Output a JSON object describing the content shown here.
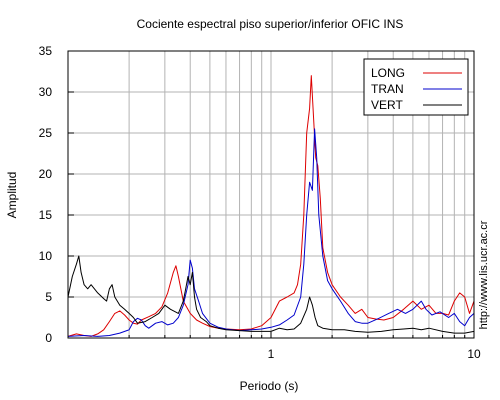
{
  "chart_data": {
    "type": "line",
    "title": "Cociente espectral piso superior/inferior  OFIC INS",
    "xlabel": "Periodo (s)",
    "ylabel": "Amplitud",
    "x_scale": "log",
    "xlim": [
      0.1,
      10
    ],
    "ylim": [
      0,
      35
    ],
    "x_tick_labels": [
      "1",
      "10"
    ],
    "y_ticks": [
      0,
      5,
      10,
      15,
      20,
      25,
      30,
      35
    ],
    "grid": true,
    "legend_position": "top-right",
    "credit": "http://www.lis.ucr.ac.cr",
    "series": [
      {
        "name": "LONG",
        "color": "#dd0000",
        "points": [
          [
            0.1,
            0.2
          ],
          [
            0.11,
            0.5
          ],
          [
            0.12,
            0.3
          ],
          [
            0.13,
            0.2
          ],
          [
            0.14,
            0.5
          ],
          [
            0.15,
            1.0
          ],
          [
            0.16,
            2.0
          ],
          [
            0.17,
            3.0
          ],
          [
            0.18,
            3.3
          ],
          [
            0.19,
            2.8
          ],
          [
            0.2,
            2.2
          ],
          [
            0.21,
            1.8
          ],
          [
            0.22,
            1.7
          ],
          [
            0.23,
            2.2
          ],
          [
            0.25,
            2.6
          ],
          [
            0.27,
            3.0
          ],
          [
            0.29,
            3.8
          ],
          [
            0.31,
            5.5
          ],
          [
            0.33,
            8.0
          ],
          [
            0.34,
            8.8
          ],
          [
            0.35,
            7.5
          ],
          [
            0.37,
            4.5
          ],
          [
            0.4,
            3.0
          ],
          [
            0.43,
            2.2
          ],
          [
            0.46,
            1.8
          ],
          [
            0.5,
            1.4
          ],
          [
            0.55,
            1.2
          ],
          [
            0.6,
            1.1
          ],
          [
            0.7,
            1.0
          ],
          [
            0.8,
            1.1
          ],
          [
            0.9,
            1.5
          ],
          [
            1.0,
            2.5
          ],
          [
            1.1,
            4.5
          ],
          [
            1.2,
            5.0
          ],
          [
            1.3,
            5.5
          ],
          [
            1.35,
            6.5
          ],
          [
            1.4,
            9.0
          ],
          [
            1.45,
            15.0
          ],
          [
            1.5,
            25.0
          ],
          [
            1.55,
            28.0
          ],
          [
            1.58,
            32.0
          ],
          [
            1.62,
            27.0
          ],
          [
            1.66,
            22.0
          ],
          [
            1.7,
            21.0
          ],
          [
            1.75,
            17.0
          ],
          [
            1.8,
            11.0
          ],
          [
            1.9,
            8.0
          ],
          [
            2.0,
            6.5
          ],
          [
            2.2,
            5.0
          ],
          [
            2.4,
            4.0
          ],
          [
            2.6,
            3.0
          ],
          [
            2.8,
            3.5
          ],
          [
            3.0,
            2.5
          ],
          [
            3.3,
            2.3
          ],
          [
            3.6,
            2.2
          ],
          [
            4.0,
            2.5
          ],
          [
            4.5,
            3.5
          ],
          [
            5.0,
            4.5
          ],
          [
            5.5,
            3.5
          ],
          [
            6.0,
            4.0
          ],
          [
            6.5,
            3.0
          ],
          [
            7.0,
            3.0
          ],
          [
            7.5,
            2.8
          ],
          [
            8.0,
            4.5
          ],
          [
            8.5,
            5.5
          ],
          [
            9.0,
            5.0
          ],
          [
            9.5,
            3.0
          ],
          [
            10.0,
            4.5
          ]
        ]
      },
      {
        "name": "TRAN",
        "color": "#0000cc",
        "points": [
          [
            0.1,
            0.2
          ],
          [
            0.12,
            0.3
          ],
          [
            0.14,
            0.2
          ],
          [
            0.16,
            0.3
          ],
          [
            0.18,
            0.6
          ],
          [
            0.2,
            1.0
          ],
          [
            0.21,
            2.0
          ],
          [
            0.22,
            2.4
          ],
          [
            0.23,
            2.2
          ],
          [
            0.24,
            1.5
          ],
          [
            0.25,
            1.2
          ],
          [
            0.27,
            1.8
          ],
          [
            0.29,
            2.0
          ],
          [
            0.31,
            1.6
          ],
          [
            0.33,
            1.8
          ],
          [
            0.35,
            2.5
          ],
          [
            0.37,
            4.0
          ],
          [
            0.39,
            6.5
          ],
          [
            0.4,
            9.5
          ],
          [
            0.41,
            8.5
          ],
          [
            0.42,
            6.0
          ],
          [
            0.44,
            4.5
          ],
          [
            0.46,
            3.0
          ],
          [
            0.5,
            1.8
          ],
          [
            0.55,
            1.3
          ],
          [
            0.6,
            1.1
          ],
          [
            0.7,
            0.9
          ],
          [
            0.8,
            1.0
          ],
          [
            0.9,
            1.1
          ],
          [
            1.0,
            1.3
          ],
          [
            1.1,
            1.6
          ],
          [
            1.2,
            2.2
          ],
          [
            1.3,
            2.8
          ],
          [
            1.4,
            5.0
          ],
          [
            1.45,
            9.0
          ],
          [
            1.5,
            15.0
          ],
          [
            1.55,
            19.0
          ],
          [
            1.6,
            18.0
          ],
          [
            1.64,
            25.5
          ],
          [
            1.68,
            22.0
          ],
          [
            1.72,
            15.0
          ],
          [
            1.8,
            10.0
          ],
          [
            1.9,
            7.0
          ],
          [
            2.0,
            6.0
          ],
          [
            2.2,
            4.5
          ],
          [
            2.4,
            3.0
          ],
          [
            2.6,
            2.0
          ],
          [
            2.8,
            1.8
          ],
          [
            3.0,
            1.8
          ],
          [
            3.4,
            2.4
          ],
          [
            3.8,
            3.0
          ],
          [
            4.2,
            3.5
          ],
          [
            4.6,
            3.0
          ],
          [
            5.0,
            3.5
          ],
          [
            5.5,
            4.5
          ],
          [
            5.8,
            3.5
          ],
          [
            6.2,
            2.8
          ],
          [
            6.8,
            3.2
          ],
          [
            7.5,
            2.5
          ],
          [
            8.0,
            3.0
          ],
          [
            8.5,
            2.0
          ],
          [
            9.0,
            1.5
          ],
          [
            9.5,
            2.5
          ],
          [
            10.0,
            3.0
          ]
        ]
      },
      {
        "name": "VERT",
        "color": "#000000",
        "points": [
          [
            0.1,
            5.0
          ],
          [
            0.105,
            7.5
          ],
          [
            0.11,
            9.0
          ],
          [
            0.113,
            10.0
          ],
          [
            0.116,
            8.0
          ],
          [
            0.12,
            6.5
          ],
          [
            0.125,
            6.0
          ],
          [
            0.13,
            6.5
          ],
          [
            0.14,
            5.5
          ],
          [
            0.15,
            4.8
          ],
          [
            0.155,
            4.5
          ],
          [
            0.16,
            6.0
          ],
          [
            0.165,
            6.5
          ],
          [
            0.17,
            5.0
          ],
          [
            0.18,
            4.0
          ],
          [
            0.19,
            3.5
          ],
          [
            0.2,
            3.0
          ],
          [
            0.21,
            2.5
          ],
          [
            0.22,
            1.8
          ],
          [
            0.24,
            2.0
          ],
          [
            0.26,
            2.5
          ],
          [
            0.28,
            3.0
          ],
          [
            0.3,
            4.0
          ],
          [
            0.32,
            3.5
          ],
          [
            0.35,
            3.0
          ],
          [
            0.37,
            4.5
          ],
          [
            0.38,
            6.0
          ],
          [
            0.39,
            7.5
          ],
          [
            0.4,
            6.5
          ],
          [
            0.41,
            8.0
          ],
          [
            0.42,
            5.0
          ],
          [
            0.43,
            3.5
          ],
          [
            0.45,
            2.5
          ],
          [
            0.48,
            2.0
          ],
          [
            0.5,
            1.5
          ],
          [
            0.55,
            1.2
          ],
          [
            0.6,
            1.0
          ],
          [
            0.7,
            0.9
          ],
          [
            0.8,
            0.8
          ],
          [
            0.9,
            0.8
          ],
          [
            1.0,
            0.8
          ],
          [
            1.1,
            1.2
          ],
          [
            1.2,
            1.0
          ],
          [
            1.3,
            1.1
          ],
          [
            1.4,
            1.8
          ],
          [
            1.5,
            3.5
          ],
          [
            1.55,
            5.0
          ],
          [
            1.6,
            4.0
          ],
          [
            1.65,
            2.5
          ],
          [
            1.7,
            1.5
          ],
          [
            1.8,
            1.2
          ],
          [
            2.0,
            1.0
          ],
          [
            2.3,
            1.0
          ],
          [
            2.6,
            0.8
          ],
          [
            3.0,
            0.7
          ],
          [
            3.5,
            0.8
          ],
          [
            4.0,
            1.0
          ],
          [
            4.5,
            1.1
          ],
          [
            5.0,
            1.2
          ],
          [
            5.5,
            1.0
          ],
          [
            6.0,
            1.2
          ],
          [
            7.0,
            0.8
          ],
          [
            8.0,
            0.6
          ],
          [
            9.0,
            0.6
          ],
          [
            10.0,
            0.8
          ]
        ]
      }
    ]
  }
}
